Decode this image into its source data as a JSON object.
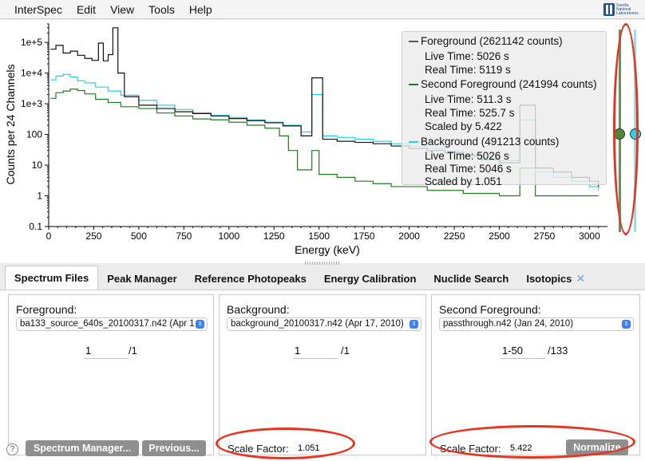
{
  "menubar": {
    "items": [
      "InterSpec",
      "Edit",
      "View",
      "Tools",
      "Help"
    ],
    "logo_text": "Sandia National Laboratories"
  },
  "chart_data": {
    "type": "line",
    "title": "",
    "xlabel": "Energy (keV)",
    "ylabel": "Counts per 24 Channels",
    "y_scale": "log",
    "xlim": [
      0,
      3100
    ],
    "ylim": [
      0.1,
      400000
    ],
    "x_ticks": [
      "0",
      "250",
      "500",
      "750",
      "1000",
      "1250",
      "1500",
      "1750",
      "2000",
      "2250",
      "2500",
      "2750",
      "3000"
    ],
    "y_ticks": [
      "1e+5",
      "1e+4",
      "1e+3",
      "100",
      "10",
      "1",
      "0.1"
    ],
    "legend_position": "top-right",
    "series": [
      {
        "name": "Foreground (2621142 counts)",
        "color": "#111111",
        "x": [
          10,
          40,
          80,
          120,
          160,
          200,
          240,
          276,
          303,
          330,
          356,
          384,
          420,
          500,
          600,
          700,
          800,
          900,
          1000,
          1100,
          1200,
          1300,
          1400,
          1460,
          1520,
          1600,
          1700,
          1800,
          1900,
          2000,
          2100,
          2200,
          2300,
          2400,
          2500,
          2614,
          2700,
          2800,
          2900,
          3000,
          3050
        ],
        "y": [
          60000,
          80000,
          45000,
          52000,
          38000,
          30000,
          26000,
          95000,
          25000,
          40000,
          300000,
          10000,
          1700,
          900,
          700,
          550,
          480,
          400,
          330,
          280,
          240,
          190,
          90,
          7000,
          70,
          60,
          55,
          50,
          42,
          35,
          30,
          25,
          20,
          15,
          12,
          900,
          8,
          6,
          4,
          3,
          2
        ]
      },
      {
        "name": "Second Foreground (241994 counts)",
        "color": "#1e7b1e",
        "x": [
          10,
          40,
          80,
          120,
          160,
          200,
          260,
          330,
          400,
          500,
          600,
          700,
          800,
          900,
          1000,
          1100,
          1200,
          1280,
          1330,
          1380,
          1460,
          1500,
          1600,
          1700,
          1800,
          1900,
          2000,
          2100,
          2200,
          2300,
          2400,
          2500,
          2614,
          2700,
          2800,
          2900,
          3000,
          3050
        ],
        "y": [
          1500,
          2300,
          2600,
          3000,
          2700,
          2100,
          1400,
          1100,
          800,
          700,
          500,
          400,
          320,
          300,
          250,
          200,
          160,
          90,
          30,
          7,
          30,
          5,
          4,
          3,
          2.5,
          2,
          2,
          1.5,
          1.5,
          1.2,
          1.2,
          1,
          8,
          1,
          1,
          1,
          1,
          1
        ]
      },
      {
        "name": "Background (491213 counts)",
        "color": "#22d3e6",
        "x": [
          10,
          40,
          80,
          120,
          160,
          200,
          260,
          330,
          400,
          500,
          600,
          700,
          800,
          900,
          1000,
          1100,
          1200,
          1300,
          1400,
          1460,
          1520,
          1600,
          1700,
          1800,
          1900,
          2000,
          2100,
          2200,
          2300,
          2400,
          2500,
          2614,
          2700,
          2800,
          2900,
          3000,
          3050
        ],
        "y": [
          6000,
          8000,
          9000,
          7500,
          5600,
          4800,
          3500,
          2600,
          1900,
          1300,
          900,
          650,
          500,
          420,
          360,
          300,
          250,
          200,
          120,
          2000,
          90,
          80,
          70,
          60,
          50,
          42,
          35,
          28,
          22,
          18,
          14,
          300,
          6,
          4,
          3,
          2,
          1.5
        ]
      }
    ]
  },
  "legend": {
    "foreground": {
      "title": "Foreground (2621142 counts)",
      "live_time": "Live Time: 5026 s",
      "real_time": "Real Time: 5119 s"
    },
    "second_foreground": {
      "title": "Second Foreground (241994 counts)",
      "live_time": "Live Time: 511.3 s",
      "real_time": "Real Time: 525.7 s",
      "scaled_by": "Scaled by 5.422"
    },
    "background": {
      "title": "Background (491213 counts)",
      "live_time": "Live Time: 5026 s",
      "real_time": "Real Time: 5046 s",
      "scaled_by": "Scaled by 1.051"
    }
  },
  "tabs": [
    {
      "label": "Spectrum Files",
      "active": true
    },
    {
      "label": "Peak Manager"
    },
    {
      "label": "Reference Photopeaks"
    },
    {
      "label": "Energy Calibration"
    },
    {
      "label": "Nuclide Search"
    },
    {
      "label": "Isotopics"
    }
  ],
  "panels": {
    "foreground": {
      "title": "Foreground:",
      "file": "ba133_source_640s_20100317.n42 (Apr 1",
      "index": "1",
      "total": "/1",
      "spectrum_manager_button": "Spectrum Manager...",
      "previous_button": "Previous..."
    },
    "background": {
      "title": "Background:",
      "file": "background_20100317.n42 (Apr 17, 2010)",
      "index": "1",
      "total": "/1",
      "scale_label": "Scale Factor:",
      "scale_value": "1.051"
    },
    "second_foreground": {
      "title": "Second Foreground:",
      "file": "passthrough.n42 (Jan 24, 2010)",
      "index": "1-50",
      "total": "/133",
      "scale_label": "Scale Factor:",
      "scale_value": "5.422",
      "normalize_button": "Normalize"
    }
  },
  "help_label": "?"
}
